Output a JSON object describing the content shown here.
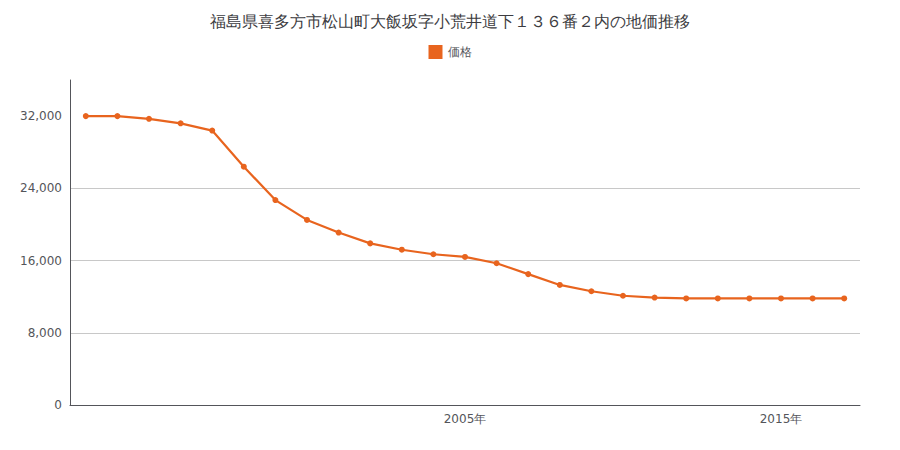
{
  "chart_data": {
    "type": "line",
    "title": "福島県喜多方市松山町大飯坂字小荒井道下１３６番２内の地価推移",
    "series": [
      {
        "name": "価格",
        "color": "#e8641e",
        "marker": "circle",
        "values": [
          32000,
          32000,
          31700,
          31200,
          30400,
          26400,
          22700,
          20500,
          19100,
          17900,
          17200,
          16700,
          16400,
          15700,
          14500,
          13300,
          12600,
          12100,
          11900,
          11800,
          11800,
          11800,
          11800,
          11800,
          11800
        ]
      }
    ],
    "x": [
      1993,
      1994,
      1995,
      1996,
      1997,
      1998,
      1999,
      2000,
      2001,
      2002,
      2003,
      2004,
      2005,
      2006,
      2007,
      2008,
      2009,
      2010,
      2011,
      2012,
      2013,
      2014,
      2015,
      2016,
      2017
    ],
    "xlim": [
      1992.5,
      2017.5
    ],
    "xticks": [
      {
        "value": 2005,
        "label": "2005年"
      },
      {
        "value": 2015,
        "label": "2015年"
      }
    ],
    "ylim": [
      0,
      36000
    ],
    "yticks": [
      0,
      {
        "value": 8000,
        "label": "8,000"
      },
      {
        "value": 16000,
        "label": "16,000"
      },
      {
        "value": 24000,
        "label": "24,000"
      },
      {
        "value": 32000,
        "label": "32,000"
      }
    ],
    "grid": "y",
    "legend": "upper center"
  }
}
